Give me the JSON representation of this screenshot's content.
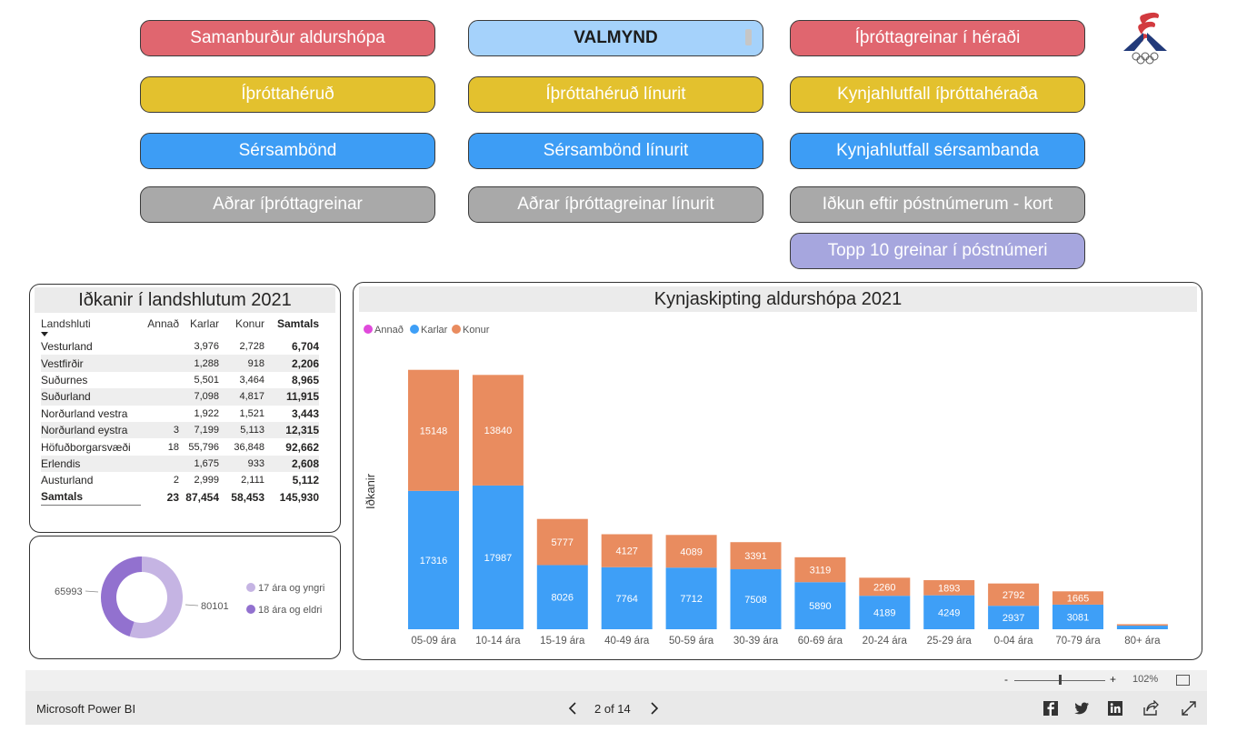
{
  "nav": {
    "row1": [
      "Samanburður aldurshópa",
      "VALMYND",
      "Íþróttagreinar í héraði"
    ],
    "row2": [
      "Íþróttahéruð",
      "Íþróttahéruð línurit",
      "Kynjahlutfall íþróttahéraða"
    ],
    "row3": [
      "Sérsambönd",
      "Sérsambönd línurit",
      "Kynjahlutfall sérsambanda"
    ],
    "row4": [
      "Aðrar íþróttagreinar",
      "Aðrar íþróttagreinar línurit",
      "Iðkun eftir póstnúmerum - kort"
    ],
    "row5": [
      "Topp 10 greinar í póstnúmeri"
    ]
  },
  "colors": {
    "red": "#e0666f",
    "yellow": "#e3c12e",
    "blue": "#3d9df5",
    "gray": "#a9a9a9",
    "purple": "#a6a6de",
    "karlar": "#3e9ff7",
    "konur": "#e98c5f",
    "annad": "#e04adb",
    "yngri": "#c5b4e3",
    "eldri": "#9271cf"
  },
  "matrix": {
    "title": "Iðkanir í landshlutum 2021",
    "headers": [
      "Landshluti",
      "Annað",
      "Karlar",
      "Konur",
      "Samtals"
    ],
    "rows": [
      [
        "Vesturland",
        "",
        "3,976",
        "2,728",
        "6,704"
      ],
      [
        "Vestfirðir",
        "",
        "1,288",
        "918",
        "2,206"
      ],
      [
        "Suðurnes",
        "",
        "5,501",
        "3,464",
        "8,965"
      ],
      [
        "Suðurland",
        "",
        "7,098",
        "4,817",
        "11,915"
      ],
      [
        "Norðurland vestra",
        "",
        "1,922",
        "1,521",
        "3,443"
      ],
      [
        "Norðurland eystra",
        "3",
        "7,199",
        "5,113",
        "12,315"
      ],
      [
        "Höfuðborgarsvæði",
        "18",
        "55,796",
        "36,848",
        "92,662"
      ],
      [
        "Erlendis",
        "",
        "1,675",
        "933",
        "2,608"
      ],
      [
        "Austurland",
        "2",
        "2,999",
        "2,111",
        "5,112"
      ]
    ],
    "total": [
      "Samtals",
      "23",
      "87,454",
      "58,453",
      "145,930"
    ]
  },
  "donut": {
    "label_left": "65993",
    "label_right": "80101",
    "legend": [
      "17 ára og yngri",
      "18 ára og eldri"
    ]
  },
  "chart_data": {
    "type": "bar",
    "stacked": true,
    "title": "Kynjaskipting aldurshópa 2021",
    "ylabel": "Iðkanir",
    "legend": [
      "Annað",
      "Karlar",
      "Konur"
    ],
    "categories": [
      "05-09 ára",
      "10-14 ára",
      "15-19 ára",
      "40-49 ára",
      "50-59 ára",
      "30-39 ára",
      "60-69 ára",
      "20-24 ára",
      "25-29 ára",
      "0-04 ára",
      "70-79 ára",
      "80+ ára"
    ],
    "series": [
      {
        "name": "Karlar",
        "values": [
          17316,
          17987,
          8026,
          7764,
          7712,
          7508,
          5890,
          4189,
          4249,
          2937,
          3081,
          450
        ]
      },
      {
        "name": "Konur",
        "values": [
          15148,
          13840,
          5777,
          4127,
          4089,
          3391,
          3119,
          2260,
          1893,
          2792,
          1665,
          180
        ]
      }
    ],
    "labels_karlar": [
      "17316",
      "17987",
      "8026",
      "7764",
      "7712",
      "7508",
      "5890",
      "4189",
      "4249",
      "2937",
      "3081",
      ""
    ],
    "labels_konur": [
      "15148",
      "13840",
      "5777",
      "4127",
      "4089",
      "3391",
      "3119",
      "2260",
      "1893",
      "2792",
      "1665",
      ""
    ],
    "ylim": [
      0,
      33000
    ]
  },
  "footer": {
    "brand": "Microsoft Power BI",
    "page": "2 of 14",
    "zoom": "102%",
    "zoom_minus": "-",
    "zoom_plus": "+"
  }
}
